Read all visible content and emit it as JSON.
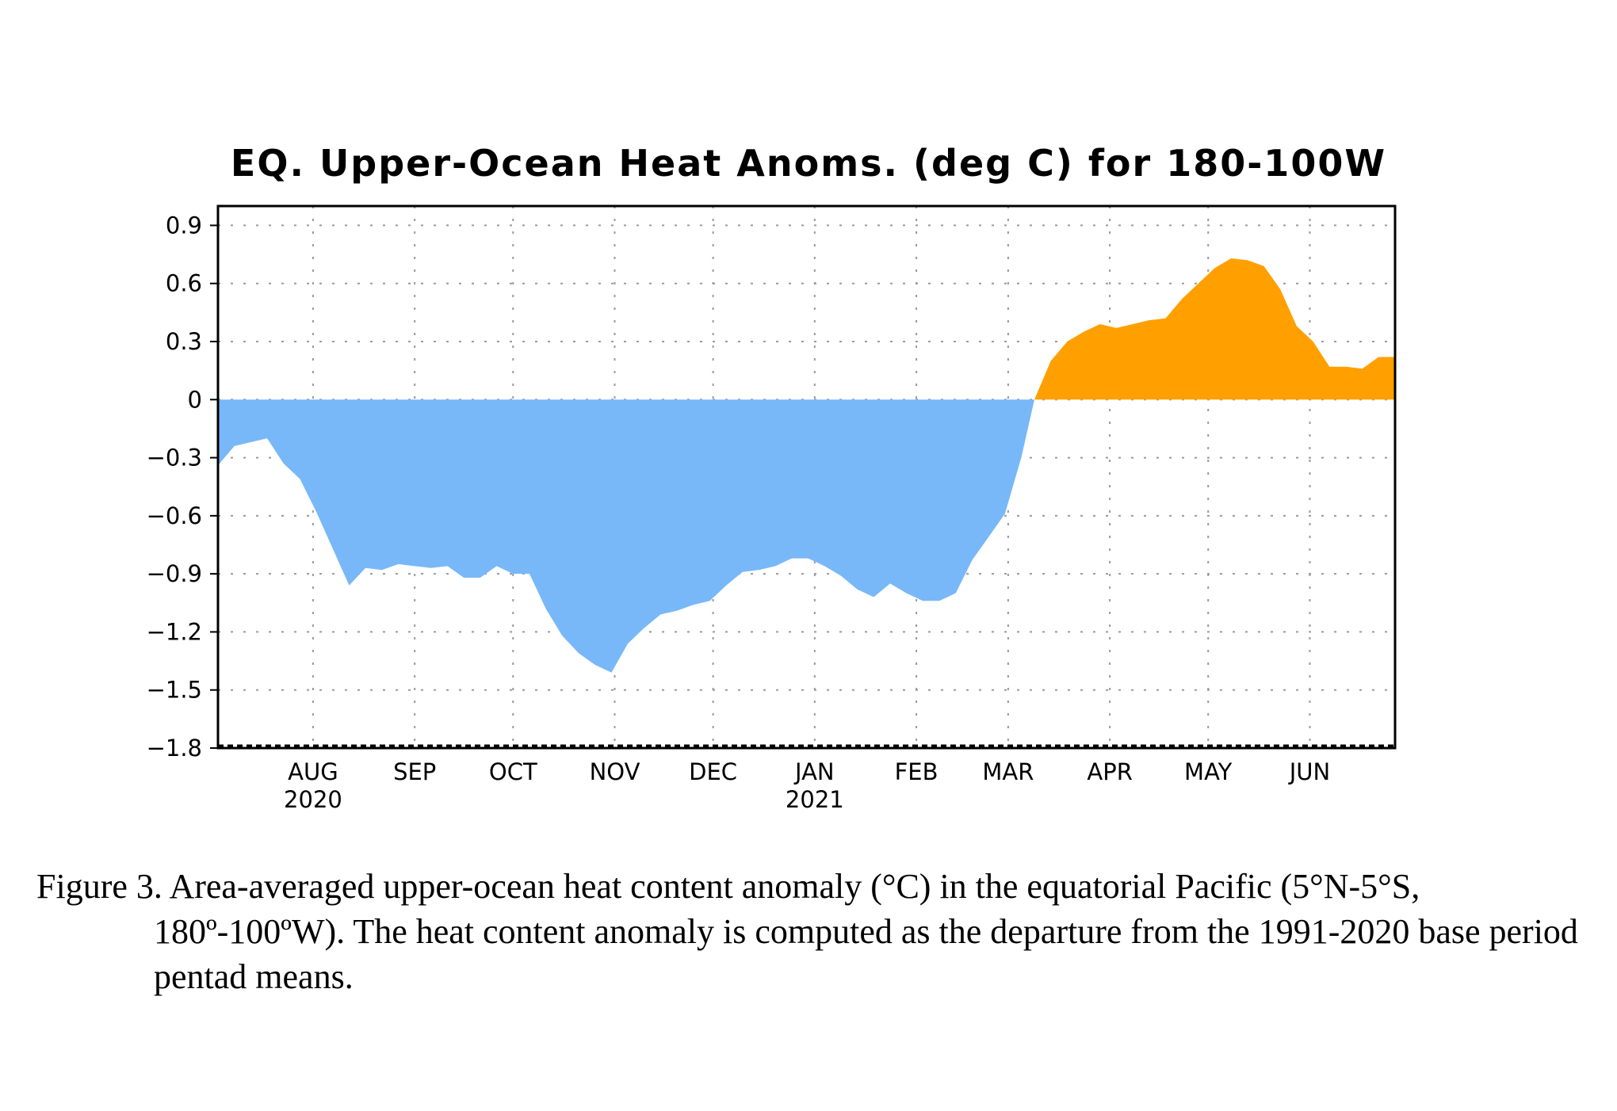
{
  "chart_data": {
    "type": "area",
    "title": "EQ. Upper-Ocean Heat Anoms. (deg C) for 180-100W",
    "xlabel": "",
    "ylabel": "",
    "ylim": [
      -1.8,
      1.0
    ],
    "yticks": [
      0.9,
      0.6,
      0.3,
      0,
      -0.3,
      -0.6,
      -0.9,
      -1.2,
      -1.5,
      -1.8
    ],
    "ytick_labels": [
      "0.9",
      "0.6",
      "0.3",
      "0",
      "−0.3",
      "−0.6",
      "−0.9",
      "−1.2",
      "−1.5",
      "−1.8"
    ],
    "xlim": [
      "2020-07-03",
      "2021-06-27"
    ],
    "xticks": [
      {
        "date": "2020-08-01",
        "label": "AUG",
        "year": "2020"
      },
      {
        "date": "2020-09-01",
        "label": "SEP",
        "year": ""
      },
      {
        "date": "2020-10-01",
        "label": "OCT",
        "year": ""
      },
      {
        "date": "2020-11-01",
        "label": "NOV",
        "year": ""
      },
      {
        "date": "2020-12-01",
        "label": "DEC",
        "year": ""
      },
      {
        "date": "2021-01-01",
        "label": "JAN",
        "year": "2021"
      },
      {
        "date": "2021-02-01",
        "label": "FEB",
        "year": ""
      },
      {
        "date": "2021-03-01",
        "label": "MAR",
        "year": ""
      },
      {
        "date": "2021-04-01",
        "label": "APR",
        "year": ""
      },
      {
        "date": "2021-05-01",
        "label": "MAY",
        "year": ""
      },
      {
        "date": "2021-06-01",
        "label": "JUN",
        "year": ""
      }
    ],
    "grid": true,
    "positive_color": "#FFA000",
    "negative_color": "#78B8F8",
    "series": [
      {
        "name": "",
        "points": [
          {
            "x": "2020-07-03",
            "y": -0.34
          },
          {
            "x": "2020-07-08",
            "y": -0.24
          },
          {
            "x": "2020-07-13",
            "y": -0.22
          },
          {
            "x": "2020-07-18",
            "y": -0.2
          },
          {
            "x": "2020-07-23",
            "y": -0.33
          },
          {
            "x": "2020-07-28",
            "y": -0.41
          },
          {
            "x": "2020-08-02",
            "y": -0.58
          },
          {
            "x": "2020-08-07",
            "y": -0.77
          },
          {
            "x": "2020-08-12",
            "y": -0.96
          },
          {
            "x": "2020-08-17",
            "y": -0.87
          },
          {
            "x": "2020-08-22",
            "y": -0.88
          },
          {
            "x": "2020-08-27",
            "y": -0.85
          },
          {
            "x": "2020-09-01",
            "y": -0.86
          },
          {
            "x": "2020-09-06",
            "y": -0.87
          },
          {
            "x": "2020-09-11",
            "y": -0.86
          },
          {
            "x": "2020-09-16",
            "y": -0.92
          },
          {
            "x": "2020-09-21",
            "y": -0.92
          },
          {
            "x": "2020-09-26",
            "y": -0.86
          },
          {
            "x": "2020-10-01",
            "y": -0.9
          },
          {
            "x": "2020-10-06",
            "y": -0.9
          },
          {
            "x": "2020-10-11",
            "y": -1.08
          },
          {
            "x": "2020-10-16",
            "y": -1.22
          },
          {
            "x": "2020-10-21",
            "y": -1.31
          },
          {
            "x": "2020-10-26",
            "y": -1.37
          },
          {
            "x": "2020-10-31",
            "y": -1.41
          },
          {
            "x": "2020-11-05",
            "y": -1.26
          },
          {
            "x": "2020-11-10",
            "y": -1.18
          },
          {
            "x": "2020-11-15",
            "y": -1.11
          },
          {
            "x": "2020-11-20",
            "y": -1.09
          },
          {
            "x": "2020-11-25",
            "y": -1.06
          },
          {
            "x": "2020-11-30",
            "y": -1.04
          },
          {
            "x": "2020-12-05",
            "y": -0.96
          },
          {
            "x": "2020-12-10",
            "y": -0.89
          },
          {
            "x": "2020-12-15",
            "y": -0.88
          },
          {
            "x": "2020-12-20",
            "y": -0.86
          },
          {
            "x": "2020-12-25",
            "y": -0.82
          },
          {
            "x": "2020-12-30",
            "y": -0.82
          },
          {
            "x": "2021-01-04",
            "y": -0.86
          },
          {
            "x": "2021-01-09",
            "y": -0.91
          },
          {
            "x": "2021-01-14",
            "y": -0.98
          },
          {
            "x": "2021-01-19",
            "y": -1.02
          },
          {
            "x": "2021-01-24",
            "y": -0.95
          },
          {
            "x": "2021-01-29",
            "y": -1.0
          },
          {
            "x": "2021-02-03",
            "y": -1.04
          },
          {
            "x": "2021-02-08",
            "y": -1.04
          },
          {
            "x": "2021-02-13",
            "y": -1.0
          },
          {
            "x": "2021-02-18",
            "y": -0.83
          },
          {
            "x": "2021-02-23",
            "y": -0.71
          },
          {
            "x": "2021-02-28",
            "y": -0.59
          },
          {
            "x": "2021-03-05",
            "y": -0.3
          },
          {
            "x": "2021-03-09",
            "y": 0.0
          },
          {
            "x": "2021-03-14",
            "y": 0.2
          },
          {
            "x": "2021-03-19",
            "y": 0.3
          },
          {
            "x": "2021-03-24",
            "y": 0.35
          },
          {
            "x": "2021-03-29",
            "y": 0.39
          },
          {
            "x": "2021-04-03",
            "y": 0.37
          },
          {
            "x": "2021-04-08",
            "y": 0.39
          },
          {
            "x": "2021-04-13",
            "y": 0.41
          },
          {
            "x": "2021-04-18",
            "y": 0.42
          },
          {
            "x": "2021-04-23",
            "y": 0.52
          },
          {
            "x": "2021-04-28",
            "y": 0.6
          },
          {
            "x": "2021-05-03",
            "y": 0.68
          },
          {
            "x": "2021-05-08",
            "y": 0.73
          },
          {
            "x": "2021-05-13",
            "y": 0.72
          },
          {
            "x": "2021-05-18",
            "y": 0.69
          },
          {
            "x": "2021-05-23",
            "y": 0.57
          },
          {
            "x": "2021-05-28",
            "y": 0.38
          },
          {
            "x": "2021-06-02",
            "y": 0.3
          },
          {
            "x": "2021-06-07",
            "y": 0.17
          },
          {
            "x": "2021-06-12",
            "y": 0.17
          },
          {
            "x": "2021-06-17",
            "y": 0.16
          },
          {
            "x": "2021-06-22",
            "y": 0.22
          },
          {
            "x": "2021-06-27",
            "y": 0.22
          }
        ]
      }
    ]
  },
  "caption": "Figure 3. Area-averaged upper-ocean heat content anomaly (°C) in the equatorial Pacific (5°N-5°S, 180º-100ºW). The heat content anomaly is computed as the departure from the 1991-2020 base period pentad means."
}
